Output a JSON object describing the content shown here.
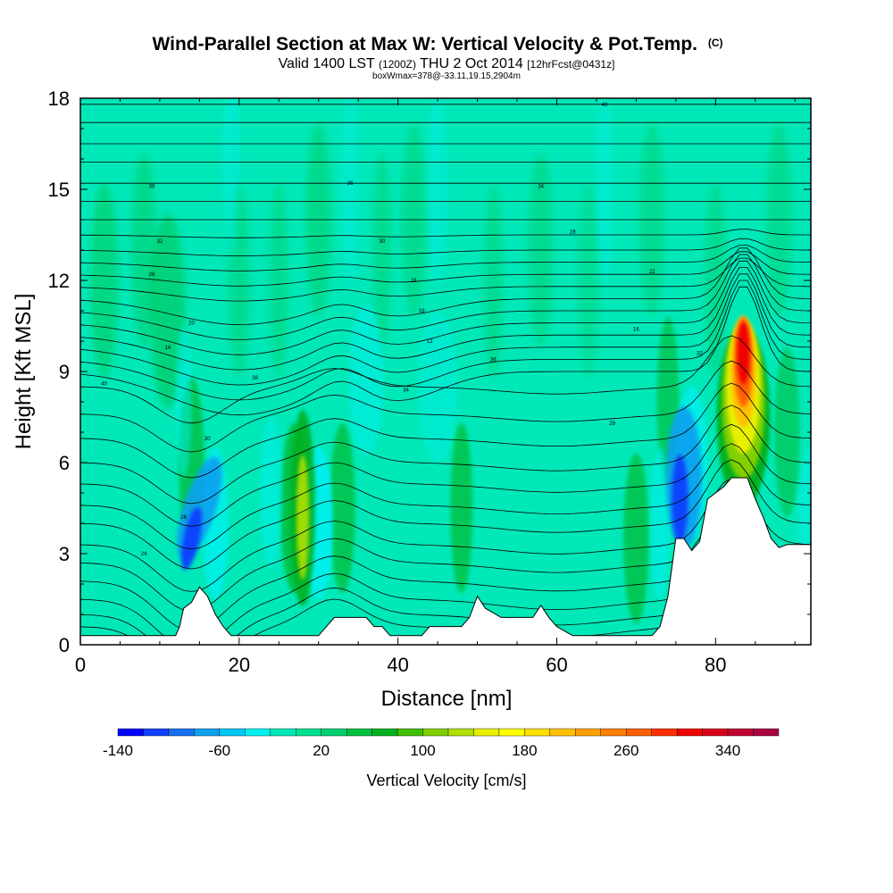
{
  "chart_data": {
    "type": "heatmap",
    "title": "Wind-Parallel Section at Max W: Vertical Velocity & Pot.Temp.",
    "title_suffix": "(C)",
    "subtitle": {
      "part1": "Valid 1400 LST",
      "part2": "(1200Z)",
      "part3": "THU 2 Oct 2014",
      "part4": "[12hrFcst@0431z]"
    },
    "subtitle2": "boxWmax=378@-33.11,19.15,2904m",
    "xlabel": "Distance [nm]",
    "ylabel": "Height [Kft MSL]",
    "xlim": [
      0,
      92
    ],
    "ylim": [
      0,
      18
    ],
    "xticks": [
      "0",
      "20",
      "40",
      "60",
      "80"
    ],
    "yticks": [
      "0",
      "3",
      "6",
      "9",
      "12",
      "15",
      "18"
    ],
    "colorbar": {
      "label": "Vertical Velocity [cm/s]",
      "tick_labels": [
        "-140",
        "-60",
        "20",
        "100",
        "180",
        "260",
        "340"
      ],
      "tick_values": [
        -140,
        -60,
        20,
        100,
        180,
        260,
        340
      ],
      "levels": [
        -140,
        -120,
        -100,
        -80,
        -60,
        -40,
        -20,
        0,
        20,
        40,
        60,
        80,
        100,
        120,
        140,
        160,
        180,
        200,
        220,
        240,
        260,
        280,
        300,
        320,
        340,
        360,
        380
      ],
      "colors": [
        "#0000ff",
        "#1040ff",
        "#1670f0",
        "#10a0f0",
        "#00c8f8",
        "#00f0f0",
        "#00e8b8",
        "#00e090",
        "#00d070",
        "#00c040",
        "#00b020",
        "#40c000",
        "#80d000",
        "#b0e000",
        "#e8f000",
        "#ffff00",
        "#ffe000",
        "#ffc000",
        "#ffa000",
        "#ff8000",
        "#ff6000",
        "#ff3000",
        "#f00000",
        "#d80018",
        "#c00030",
        "#a80040"
      ]
    },
    "terrain": [
      [
        0,
        0.3
      ],
      [
        4,
        0.3
      ],
      [
        8,
        0.3
      ],
      [
        12,
        0.3
      ],
      [
        12.5,
        0.6
      ],
      [
        13,
        1.2
      ],
      [
        14,
        1.4
      ],
      [
        15,
        1.9
      ],
      [
        16,
        1.6
      ],
      [
        17,
        1.0
      ],
      [
        18,
        0.6
      ],
      [
        19,
        0.3
      ],
      [
        22,
        0.3
      ],
      [
        26,
        0.3
      ],
      [
        30,
        0.3
      ],
      [
        31,
        0.6
      ],
      [
        32,
        0.9
      ],
      [
        36,
        0.9
      ],
      [
        37,
        0.6
      ],
      [
        38,
        0.6
      ],
      [
        39,
        0.3
      ],
      [
        43,
        0.3
      ],
      [
        44,
        0.6
      ],
      [
        48,
        0.6
      ],
      [
        49,
        0.9
      ],
      [
        50,
        1.6
      ],
      [
        51,
        1.2
      ],
      [
        53,
        0.9
      ],
      [
        57,
        0.9
      ],
      [
        58,
        1.3
      ],
      [
        59,
        0.9
      ],
      [
        60,
        0.6
      ],
      [
        62,
        0.3
      ],
      [
        64,
        0.3
      ],
      [
        72,
        0.3
      ],
      [
        73,
        0.6
      ],
      [
        74,
        1.6
      ],
      [
        75,
        3.5
      ],
      [
        76,
        3.5
      ],
      [
        77,
        3.1
      ],
      [
        78,
        3.4
      ],
      [
        79,
        4.8
      ],
      [
        80,
        5.0
      ],
      [
        81,
        5.2
      ],
      [
        82,
        5.5
      ],
      [
        84,
        5.5
      ],
      [
        85,
        4.8
      ],
      [
        86,
        4.2
      ],
      [
        87,
        3.5
      ],
      [
        88,
        3.2
      ],
      [
        89,
        3.3
      ],
      [
        92,
        3.3
      ]
    ],
    "isentrope_labels": [
      "40",
      "38",
      "36",
      "34",
      "32",
      "30",
      "28",
      "26",
      "24",
      "22",
      "20",
      "18",
      "16",
      "14",
      "12"
    ],
    "features": [
      {
        "type": "updraft",
        "x": 83.5,
        "y": 9.5,
        "w_max": 378
      },
      {
        "type": "downdraft",
        "x": 14,
        "y": 3.5,
        "w_min": -140
      },
      {
        "type": "downdraft",
        "x": 75.5,
        "y": 5,
        "w_min": -140
      },
      {
        "type": "updraft",
        "x": 28,
        "y": 4.5,
        "w_max": 160
      }
    ]
  }
}
